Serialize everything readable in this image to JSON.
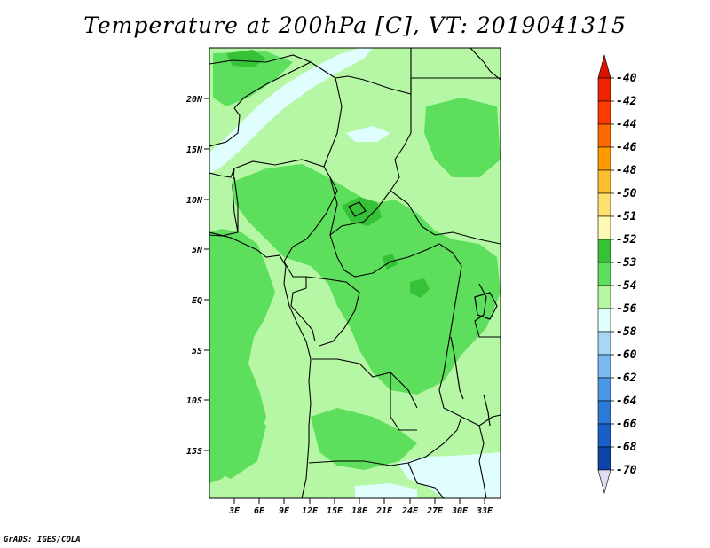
{
  "title": "Temperature at 200hPa [C], VT: 2019041315",
  "credit": "GrADS: IGES/COLA",
  "lat_labels": [
    "20N",
    "15N",
    "10N",
    "5N",
    "EQ",
    "5S",
    "10S",
    "15S"
  ],
  "lon_labels": [
    "3E",
    "6E",
    "9E",
    "12E",
    "15E",
    "18E",
    "21E",
    "24E",
    "27E",
    "30E",
    "33E"
  ],
  "colorbar": {
    "labels": [
      "-40",
      "-42",
      "-44",
      "-46",
      "-48",
      "-50",
      "-51",
      "-52",
      "-53",
      "-54",
      "-56",
      "-58",
      "-60",
      "-62",
      "-64",
      "-66",
      "-68",
      "-70"
    ],
    "colors": [
      "#ee2200",
      "#ff3a00",
      "#ff6a00",
      "#ff9a00",
      "#ffbe30",
      "#ffdf70",
      "#fff8b0",
      "#36c236",
      "#5dde5d",
      "#b5f7a5",
      "#e0fefe",
      "#a8d6f7",
      "#7ab8f0",
      "#4a97e6",
      "#2c7ad8",
      "#1a5fc8",
      "#0c43a8",
      "#08208a",
      "#000060"
    ],
    "top_arrow_color": "#dd1100",
    "bottom_arrow_color": "#e0dcf4"
  }
}
